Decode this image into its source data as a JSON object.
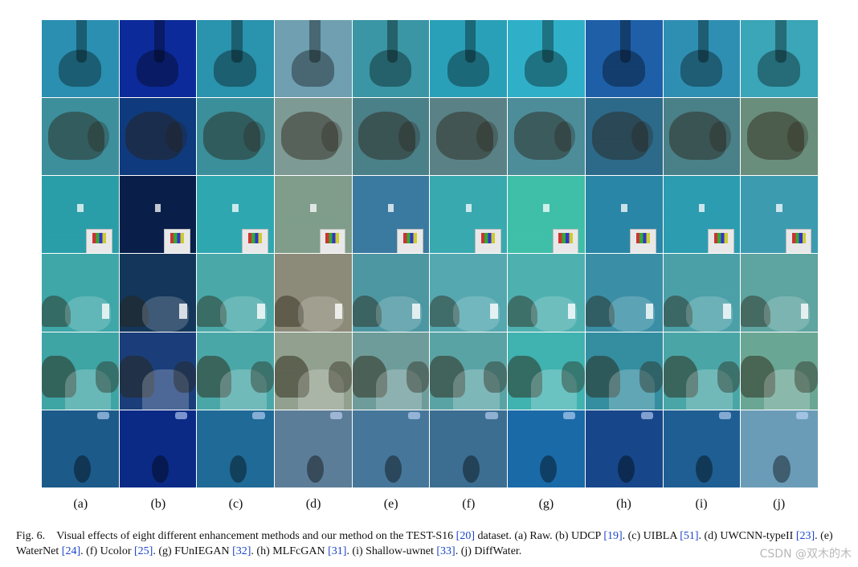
{
  "figure": {
    "rows": 6,
    "columns": [
      "(a)",
      "(b)",
      "(c)",
      "(d)",
      "(e)",
      "(f)",
      "(g)",
      "(h)",
      "(i)",
      "(j)"
    ],
    "tones": [
      [
        "#2a8fb0",
        "#0d2a9a",
        "#2a93ad",
        "#6f9fb0",
        "#3a96a4",
        "#2aa0b8",
        "#2fb0c8",
        "#1e5fa8",
        "#2f8fb3",
        "#3aa6b8"
      ],
      [
        "#3d8f9c",
        "#0f3a7d",
        "#3a8f9a",
        "#7e9a95",
        "#4a8088",
        "#5a8286",
        "#4d8d9a",
        "#2d6a8a",
        "#4a8088",
        "#6a8e7c"
      ],
      [
        "#2a9ea8",
        "#0a1e4a",
        "#2fa7b0",
        "#7f9d8a",
        "#3a7aa0",
        "#39a9b0",
        "#3fbfa8",
        "#2a86a6",
        "#2c9cb0",
        "#3d9bb0"
      ],
      [
        "#3fa7a8",
        "#14365a",
        "#4aa9a8",
        "#8c8a78",
        "#4c97a2",
        "#55a8b0",
        "#4fb0b0",
        "#3a8fa6",
        "#4ba0a8",
        "#5ea4a0"
      ],
      [
        "#3ea4a4",
        "#1b3e7a",
        "#4aa7a7",
        "#92a08f",
        "#6e9c9a",
        "#5aa3a5",
        "#40b2b0",
        "#348ea0",
        "#4aa6a6",
        "#6aa694"
      ],
      [
        "#1c5a8a",
        "#0a2a86",
        "#1f6a96",
        "#5c7d98",
        "#46779a",
        "#3c6e92",
        "#1b6aa8",
        "#17478a",
        "#1f5e92",
        "#6a9cb8"
      ]
    ]
  },
  "caption": {
    "fig_label": "Fig. 6.",
    "segments": [
      {
        "text": "Visual effects of eight different enhancement methods and our method on the TEST-S16 ",
        "ref": false
      },
      {
        "text": "[20]",
        "ref": true
      },
      {
        "text": " dataset. (a) Raw. (b) UDCP ",
        "ref": false
      },
      {
        "text": "[19]",
        "ref": true
      },
      {
        "text": ". (c) UIBLA ",
        "ref": false
      },
      {
        "text": "[51]",
        "ref": true
      },
      {
        "text": ". (d) UWCNN-typeII ",
        "ref": false
      },
      {
        "text": "[23]",
        "ref": true
      },
      {
        "text": ". (e) WaterNet ",
        "ref": false
      },
      {
        "text": "[24]",
        "ref": true
      },
      {
        "text": ". (f) Ucolor ",
        "ref": false
      },
      {
        "text": "[25]",
        "ref": true
      },
      {
        "text": ". (g) FUnIEGAN ",
        "ref": false
      },
      {
        "text": "[32]",
        "ref": true
      },
      {
        "text": ". (h) MLFcGAN ",
        "ref": false
      },
      {
        "text": "[31]",
        "ref": true
      },
      {
        "text": ". (i) Shallow-uwnet ",
        "ref": false
      },
      {
        "text": "[33]",
        "ref": true
      },
      {
        "text": ". (j) DiffWater.",
        "ref": false
      }
    ]
  },
  "watermark": "CSDN @双木的木"
}
